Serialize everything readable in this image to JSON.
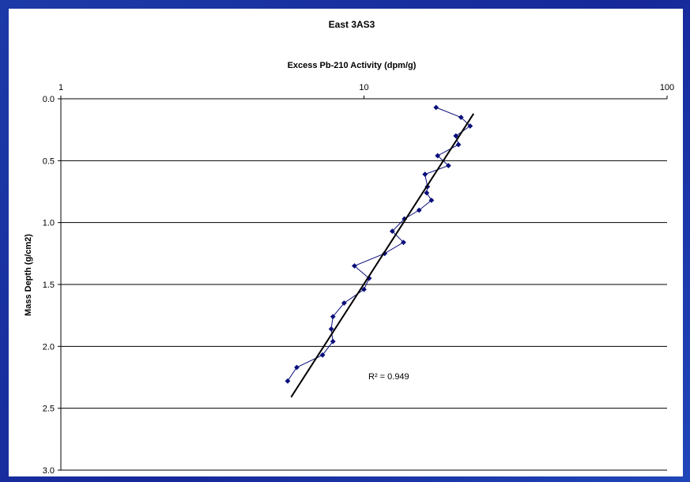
{
  "chart_data": {
    "type": "scatter",
    "title": "East 3AS3",
    "xlabel": "Excess Pb-210 Activity (dpm/g)",
    "ylabel": "Mass Depth (g/cm2)",
    "x_scale": "log",
    "x_axis_position": "top",
    "y_inverted": true,
    "xlim": [
      1,
      100
    ],
    "ylim": [
      0,
      3
    ],
    "x_ticks": [
      "1",
      "10",
      "100"
    ],
    "y_ticks": [
      "0.0",
      "0.5",
      "1.0",
      "1.5",
      "2.0",
      "2.5",
      "3.0"
    ],
    "grid": "horizontal",
    "series": [
      {
        "x": [
          17.3,
          20.9,
          22.4,
          20.1,
          20.5,
          17.5,
          19.0,
          15.9,
          16.2,
          16.1,
          16.7,
          15.2,
          13.6,
          12.4,
          13.5,
          11.7,
          9.3,
          10.4,
          10.0,
          8.6,
          7.9,
          7.8,
          7.9,
          7.3,
          6.0,
          5.6
        ],
        "y": [
          0.07,
          0.15,
          0.22,
          0.3,
          0.37,
          0.46,
          0.54,
          0.61,
          0.71,
          0.76,
          0.82,
          0.9,
          0.97,
          1.07,
          1.16,
          1.25,
          1.35,
          1.45,
          1.54,
          1.65,
          1.76,
          1.86,
          1.96,
          2.07,
          2.17,
          2.28
        ]
      }
    ],
    "trendline": {
      "x": [
        5.75,
        23.0
      ],
      "y": [
        2.41,
        0.12
      ],
      "label": "R² = 0.949"
    },
    "colors": {
      "points": "#0a0f7a",
      "trendline": "#000000",
      "background": "#1a2f9a"
    }
  }
}
